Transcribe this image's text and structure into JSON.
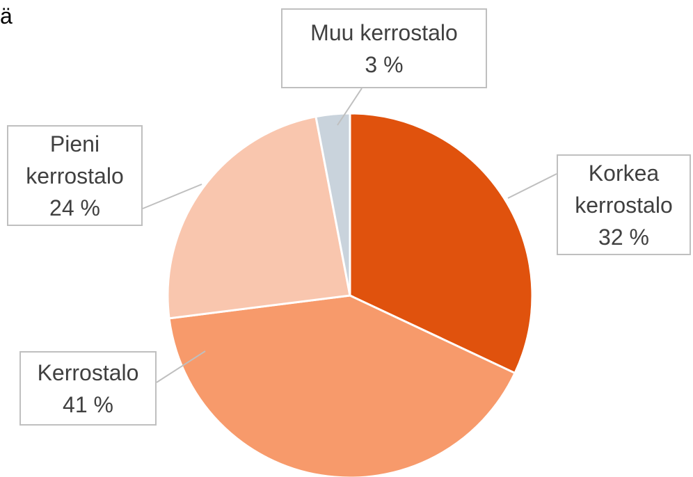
{
  "chart_data": {
    "type": "pie",
    "title": "ä",
    "categories": [
      "Korkea kerrostalo",
      "Kerrostalo",
      "Pieni kerrostalo",
      "Muu kerrostalo"
    ],
    "values": [
      32,
      41,
      24,
      3
    ],
    "value_labels": [
      "32 %",
      "41 %",
      "24 %",
      "3 %"
    ],
    "colors": [
      "#E0520D",
      "#F79A6B",
      "#F9C6AE",
      "#C9D3DC"
    ]
  }
}
